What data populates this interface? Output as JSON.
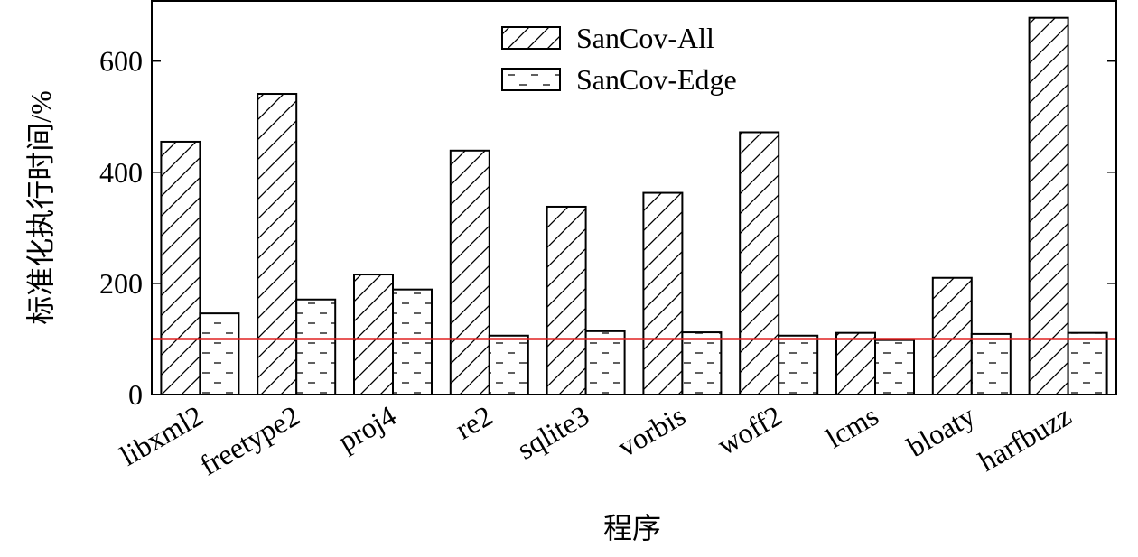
{
  "chart_data": {
    "type": "bar",
    "y_label": "标准化执行时间/%",
    "x_label": "程序",
    "categories": [
      "libxml2",
      "freetype2",
      "proj4",
      "re2",
      "sqlite3",
      "vorbis",
      "woff2",
      "lcms",
      "bloaty",
      "harfbuzz"
    ],
    "series": [
      {
        "name": "SanCov-All",
        "color": "#000000",
        "pattern": "diagonal",
        "values": [
          455,
          541,
          216,
          439,
          338,
          363,
          472,
          111,
          210,
          678
        ]
      },
      {
        "name": "SanCov-Edge",
        "color": "#000000",
        "pattern": "dash",
        "values": [
          146,
          171,
          189,
          106,
          114,
          112,
          106,
          98,
          109,
          111
        ]
      }
    ],
    "reference_line": {
      "value": 100,
      "color": "#e02020"
    },
    "ylim": [
      0,
      710
    ],
    "yticks": [
      0,
      200,
      400,
      600
    ],
    "legend": "top-center"
  }
}
